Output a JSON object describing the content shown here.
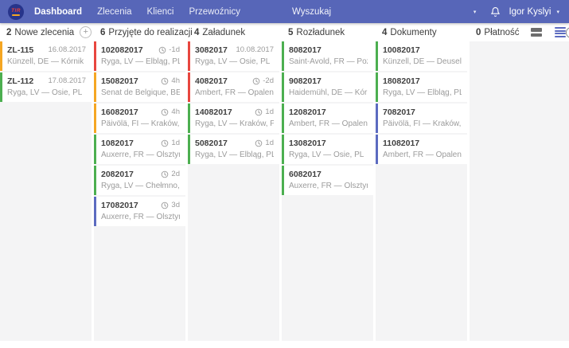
{
  "navbar": {
    "logo_text": "TIR",
    "items": [
      {
        "label": "Dashboard",
        "active": true
      },
      {
        "label": "Zlecenia",
        "active": false
      },
      {
        "label": "Klienci",
        "active": false
      },
      {
        "label": "Przewoźnicy",
        "active": false
      }
    ],
    "search_placeholder": "Wyszukaj",
    "user_name": "Igor Kyslyi"
  },
  "header_icons": {
    "help_glyph": "?",
    "add_glyph": "+"
  },
  "colors": {
    "navbar": "#5766b8",
    "accent_red": "#e8463f",
    "accent_orange": "#f5a623",
    "accent_green": "#4caf50",
    "accent_indigo": "#5c6bc0"
  },
  "board": {
    "columns": [
      {
        "count": "2",
        "title": "Nowe zlecenia",
        "has_add_button": true,
        "cards": [
          {
            "id": "ZL-115",
            "meta": "16.08.2017",
            "meta_type": "date",
            "route": "Künzell, DE — Kórnik",
            "accent": "#f5a623"
          },
          {
            "id": "ZL-112",
            "meta": "17.08.2017",
            "meta_type": "date",
            "route": "Ryga, LV — Osie, PL",
            "accent": "#4caf50"
          }
        ]
      },
      {
        "count": "6",
        "title": "Przyjęte do realizacji",
        "cards": [
          {
            "id": "102082017",
            "meta": "-1d",
            "meta_type": "eta",
            "route": "Ryga, LV — Elbląg, PL",
            "accent": "#e8463f"
          },
          {
            "id": "15082017",
            "meta": "4h",
            "meta_type": "eta",
            "route": "Senat de Belgique, BE — Kra...",
            "accent": "#f5a623"
          },
          {
            "id": "16082017",
            "meta": "4h",
            "meta_type": "eta",
            "route": "Päivölä, FI — Kraków, PL",
            "accent": "#f5a623"
          },
          {
            "id": "1082017",
            "meta": "1d",
            "meta_type": "eta",
            "route": "Auxerre, FR — Olsztyn, PL",
            "accent": "#4caf50"
          },
          {
            "id": "2082017",
            "meta": "2d",
            "meta_type": "eta",
            "route": "Ryga, LV — Chełmno, PL",
            "accent": "#4caf50"
          },
          {
            "id": "17082017",
            "meta": "3d",
            "meta_type": "eta",
            "route": "Auxerre, FR — Olsztyn, PL",
            "accent": "#5c6bc0"
          }
        ]
      },
      {
        "count": "4",
        "title": "Załadunek",
        "cards": [
          {
            "id": "3082017",
            "meta": "10.08.2017",
            "meta_type": "date",
            "route": "Ryga, LV — Osie, PL",
            "accent": "#e8463f"
          },
          {
            "id": "4082017",
            "meta": "-2d",
            "meta_type": "eta",
            "route": "Ambert, FR — Opalenica, PL",
            "accent": "#e8463f"
          },
          {
            "id": "14082017",
            "meta": "1d",
            "meta_type": "eta",
            "route": "Ryga, LV — Kraków, PL",
            "accent": "#4caf50"
          },
          {
            "id": "5082017",
            "meta": "1d",
            "meta_type": "eta",
            "route": "Ryga, LV — Elbląg, PL",
            "accent": "#4caf50"
          }
        ]
      },
      {
        "count": "5",
        "title": "Rozładunek",
        "cards": [
          {
            "id": "8082017",
            "route": "Saint-Avold, FR — Poznań, PL",
            "accent": "#4caf50"
          },
          {
            "id": "9082017",
            "route": "Haidemühl, DE — Kórnik, PL",
            "accent": "#4caf50"
          },
          {
            "id": "12082017",
            "route": "Ambert, FR — Opalenica, PL",
            "accent": "#4caf50"
          },
          {
            "id": "13082017",
            "route": "Ryga, LV — Osie, PL",
            "accent": "#4caf50"
          },
          {
            "id": "6082017",
            "route": "Auxerre, FR — Olsztyn, PL",
            "accent": "#4caf50"
          }
        ]
      },
      {
        "count": "4",
        "title": "Dokumenty",
        "cards": [
          {
            "id": "10082017",
            "route": "Künzell, DE — Deuselbach, DE",
            "accent": "#4caf50"
          },
          {
            "id": "18082017",
            "route": "Ryga, LV — Elbląg, PL",
            "accent": "#4caf50"
          },
          {
            "id": "7082017",
            "route": "Päivölä, FI — Kraków, PL",
            "accent": "#5c6bc0"
          },
          {
            "id": "11082017",
            "route": "Ambert, FR — Opalenica, PL",
            "accent": "#5c6bc0"
          }
        ]
      },
      {
        "count": "0",
        "title": "Płatność",
        "has_view_toggles": true,
        "cards": []
      }
    ]
  }
}
